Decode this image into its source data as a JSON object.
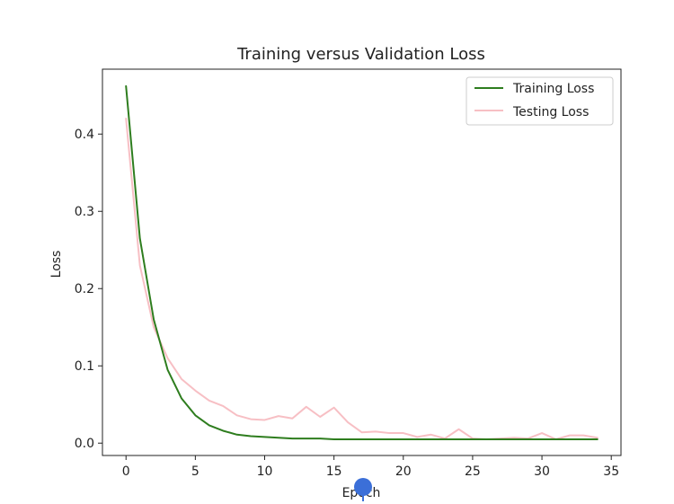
{
  "chart_data": {
    "type": "line",
    "title": "Training versus Validation Loss",
    "xlabel": "Epoch",
    "ylabel": "Loss",
    "xlim": [
      -1.7,
      35.7
    ],
    "ylim": [
      -0.016,
      0.484
    ],
    "x_ticks": [
      0,
      5,
      10,
      15,
      20,
      25,
      30,
      35
    ],
    "y_ticks": [
      0.0,
      0.1,
      0.2,
      0.3,
      0.4
    ],
    "y_tick_labels": [
      "0.0",
      "0.1",
      "0.2",
      "0.3",
      "0.4"
    ],
    "grid": false,
    "legend": {
      "position": "upper-right",
      "entries": [
        "Training Loss",
        "Testing Loss"
      ]
    },
    "x": [
      0,
      1,
      2,
      3,
      4,
      5,
      6,
      7,
      8,
      9,
      10,
      11,
      12,
      13,
      14,
      15,
      16,
      17,
      18,
      19,
      20,
      21,
      22,
      23,
      24,
      25,
      26,
      27,
      28,
      29,
      30,
      31,
      32,
      33,
      34
    ],
    "series": [
      {
        "name": "Training Loss",
        "color": "#2e7d1e",
        "values": [
          0.462,
          0.265,
          0.16,
          0.095,
          0.058,
          0.036,
          0.023,
          0.016,
          0.011,
          0.009,
          0.008,
          0.007,
          0.006,
          0.006,
          0.006,
          0.005,
          0.005,
          0.005,
          0.005,
          0.005,
          0.005,
          0.005,
          0.005,
          0.005,
          0.005,
          0.005,
          0.005,
          0.005,
          0.005,
          0.005,
          0.005,
          0.005,
          0.005,
          0.005,
          0.005
        ]
      },
      {
        "name": "Testing Loss",
        "color": "#f7bfc4",
        "values": [
          0.42,
          0.23,
          0.15,
          0.11,
          0.083,
          0.068,
          0.055,
          0.048,
          0.036,
          0.031,
          0.03,
          0.035,
          0.032,
          0.047,
          0.034,
          0.046,
          0.027,
          0.014,
          0.015,
          0.013,
          0.013,
          0.008,
          0.011,
          0.006,
          0.018,
          0.006,
          0.005,
          0.006,
          0.007,
          0.006,
          0.013,
          0.005,
          0.01,
          0.01,
          0.007
        ]
      }
    ]
  },
  "overlay": {
    "name": "cursor-marker",
    "color": "#3b6fd8"
  }
}
